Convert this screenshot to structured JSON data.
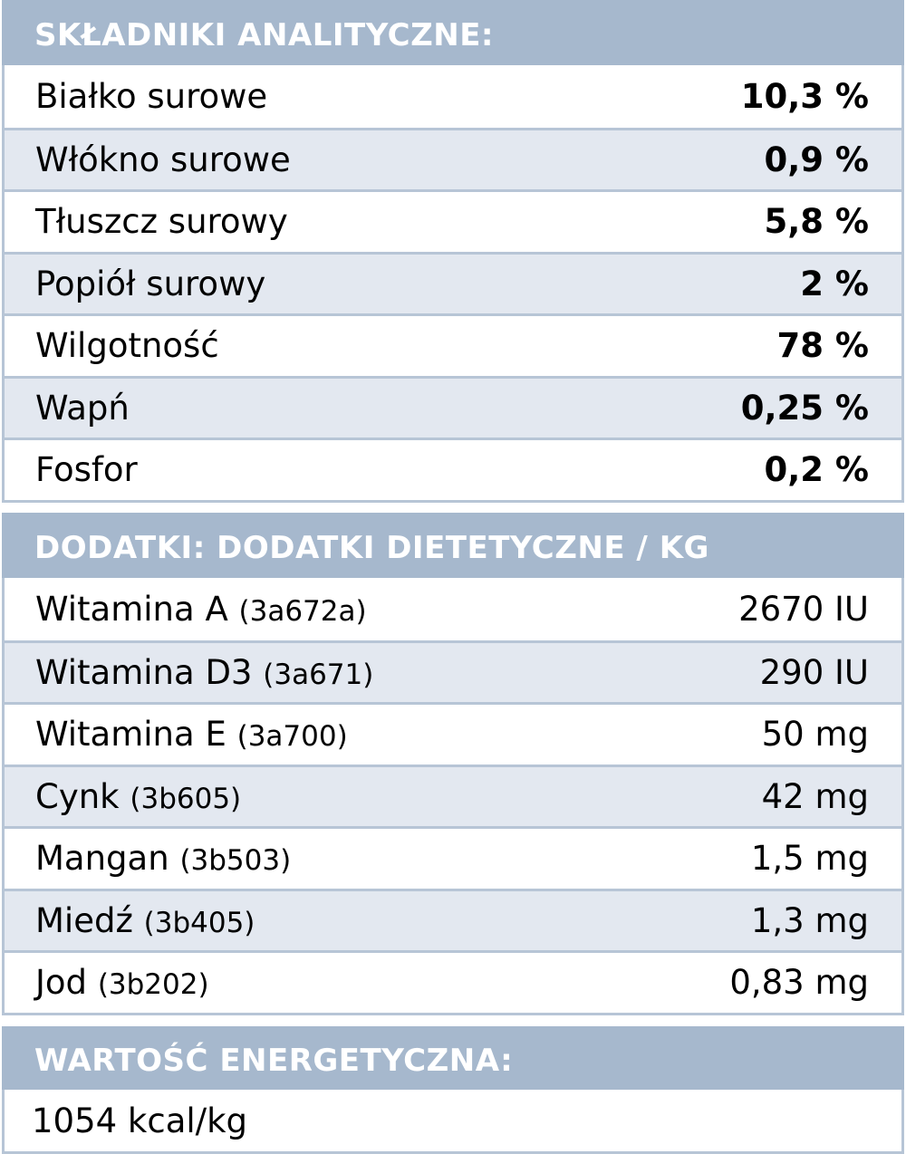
{
  "analytical": {
    "title": "SKŁADNIKI ANALITYCZNE:",
    "rows": [
      {
        "name": "Białko surowe",
        "value": "10,3 %"
      },
      {
        "name": "Włókno surowe",
        "value": "0,9 %"
      },
      {
        "name": "Tłuszcz surowy",
        "value": "5,8 %"
      },
      {
        "name": "Popiół surowy",
        "value": "2 %"
      },
      {
        "name": "Wilgotność",
        "value": "78 %"
      },
      {
        "name": "Wapń",
        "value": "0,25 %"
      },
      {
        "name": "Fosfor",
        "value": "0,2 %"
      }
    ]
  },
  "additives": {
    "title": "DODATKI: DODATKI DIETETYCZNE / KG",
    "rows": [
      {
        "name": "Witamina A",
        "code": "(3a672a)",
        "value": "2670 IU"
      },
      {
        "name": "Witamina D3",
        "code": "(3a671)",
        "value": "290 IU"
      },
      {
        "name": "Witamina E",
        "code": "(3a700)",
        "value": "50 mg"
      },
      {
        "name": "Cynk",
        "code": "(3b605)",
        "value": "42 mg"
      },
      {
        "name": "Mangan",
        "code": "(3b503)",
        "value": "1,5 mg"
      },
      {
        "name": "Miedź",
        "code": "(3b405)",
        "value": "1,3 mg"
      },
      {
        "name": "Jod",
        "code": "(3b202)",
        "value": "0,83 mg"
      }
    ]
  },
  "energy": {
    "title": "WARTOŚĆ ENERGETYCZNA:",
    "value": "1054 kcal/kg"
  },
  "colors": {
    "header": "#a6b8cd",
    "alt_row": "#e3e8f0",
    "border": "#b7c5d6"
  }
}
